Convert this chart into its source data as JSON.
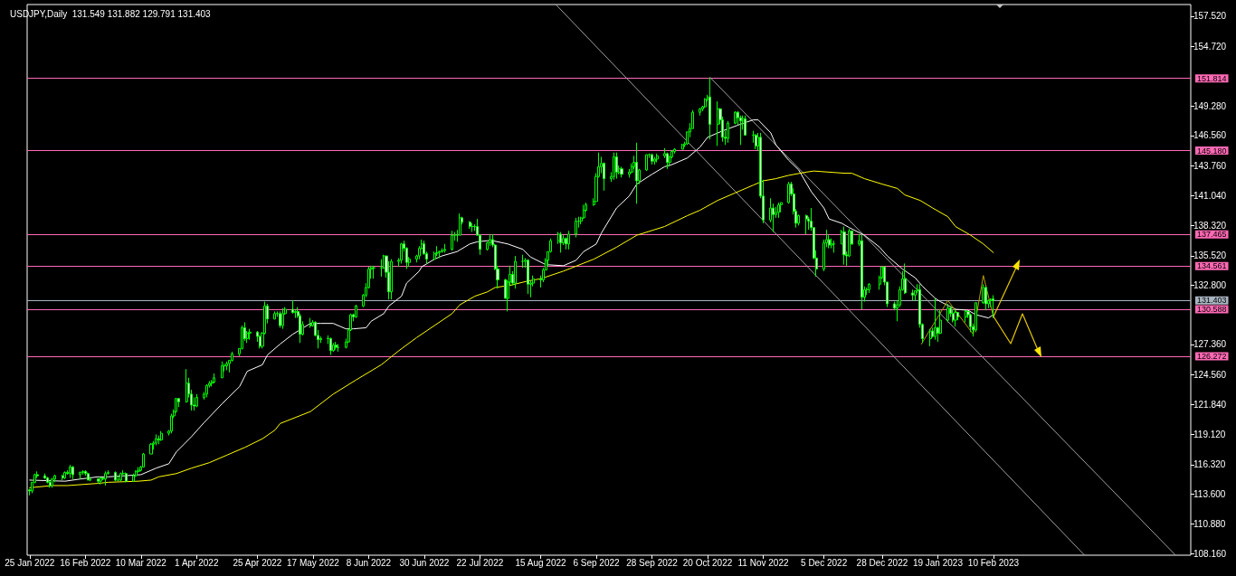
{
  "chart_data": {
    "type": "candlestick",
    "title": "USDJPY,Daily  131.549 131.882 129.791 131.403",
    "color": "#00ff00",
    "x": [
      "2022-01-25",
      "2022-01-26",
      "2022-01-27",
      "2022-01-28",
      "2022-01-31",
      "2022-02-01",
      "2022-02-02",
      "2022-02-03",
      "2022-02-04",
      "2022-02-07",
      "2022-02-08",
      "2022-02-09",
      "2022-02-10",
      "2022-02-11",
      "2022-02-14",
      "2022-02-15",
      "2022-02-16",
      "2022-02-17",
      "2022-02-18",
      "2022-02-21",
      "2022-02-22",
      "2022-02-23",
      "2022-02-24",
      "2022-02-25",
      "2022-02-28",
      "2022-03-01",
      "2022-03-02",
      "2022-03-03",
      "2022-03-04",
      "2022-03-07",
      "2022-03-08",
      "2022-03-09",
      "2022-03-10",
      "2022-03-11",
      "2022-03-14",
      "2022-03-15",
      "2022-03-16",
      "2022-03-17",
      "2022-03-18",
      "2022-03-21",
      "2022-03-22",
      "2022-03-23",
      "2022-03-24",
      "2022-03-25",
      "2022-03-28",
      "2022-03-29",
      "2022-03-30",
      "2022-03-31",
      "2022-04-01",
      "2022-04-04",
      "2022-04-05",
      "2022-04-06",
      "2022-04-07",
      "2022-04-08",
      "2022-04-11",
      "2022-04-12",
      "2022-04-13",
      "2022-04-14",
      "2022-04-15",
      "2022-04-18",
      "2022-04-19",
      "2022-04-20",
      "2022-04-21",
      "2022-04-22",
      "2022-04-25",
      "2022-04-26",
      "2022-04-27",
      "2022-04-28",
      "2022-04-29",
      "2022-05-02",
      "2022-05-03",
      "2022-05-04",
      "2022-05-05",
      "2022-05-06",
      "2022-05-09",
      "2022-05-10",
      "2022-05-11",
      "2022-05-12",
      "2022-05-13",
      "2022-05-16",
      "2022-05-17",
      "2022-05-18",
      "2022-05-19",
      "2022-05-20",
      "2022-05-23",
      "2022-05-24",
      "2022-05-25",
      "2022-05-26",
      "2022-05-27",
      "2022-05-30",
      "2022-05-31",
      "2022-06-01",
      "2022-06-02",
      "2022-06-03",
      "2022-06-06",
      "2022-06-07",
      "2022-06-08",
      "2022-06-09",
      "2022-06-10",
      "2022-06-13",
      "2022-06-14",
      "2022-06-15",
      "2022-06-16",
      "2022-06-17",
      "2022-06-20",
      "2022-06-21",
      "2022-06-22",
      "2022-06-23",
      "2022-06-24",
      "2022-06-27",
      "2022-06-28",
      "2022-06-29",
      "2022-06-30",
      "2022-07-01",
      "2022-07-04",
      "2022-07-05",
      "2022-07-06",
      "2022-07-07",
      "2022-07-08",
      "2022-07-11",
      "2022-07-12",
      "2022-07-13",
      "2022-07-14",
      "2022-07-15",
      "2022-07-18",
      "2022-07-19",
      "2022-07-20",
      "2022-07-21",
      "2022-07-22",
      "2022-07-25",
      "2022-07-26",
      "2022-07-27",
      "2022-07-28",
      "2022-07-29",
      "2022-08-01",
      "2022-08-02",
      "2022-08-03",
      "2022-08-04",
      "2022-08-05",
      "2022-08-08",
      "2022-08-09",
      "2022-08-10",
      "2022-08-11",
      "2022-08-12",
      "2022-08-15",
      "2022-08-16",
      "2022-08-17",
      "2022-08-18",
      "2022-08-19",
      "2022-08-22",
      "2022-08-23",
      "2022-08-24",
      "2022-08-25",
      "2022-08-26",
      "2022-08-29",
      "2022-08-30",
      "2022-08-31",
      "2022-09-01",
      "2022-09-02",
      "2022-09-05",
      "2022-09-06",
      "2022-09-07",
      "2022-09-08",
      "2022-09-09",
      "2022-09-12",
      "2022-09-13",
      "2022-09-14",
      "2022-09-15",
      "2022-09-16",
      "2022-09-19",
      "2022-09-20",
      "2022-09-21",
      "2022-09-22",
      "2022-09-23",
      "2022-09-26",
      "2022-09-27",
      "2022-09-28",
      "2022-09-29",
      "2022-09-30",
      "2022-10-03",
      "2022-10-04",
      "2022-10-05",
      "2022-10-06",
      "2022-10-07",
      "2022-10-10",
      "2022-10-11",
      "2022-10-12",
      "2022-10-13",
      "2022-10-14",
      "2022-10-17",
      "2022-10-18",
      "2022-10-19",
      "2022-10-20",
      "2022-10-21",
      "2022-10-24",
      "2022-10-25",
      "2022-10-26",
      "2022-10-27",
      "2022-10-28",
      "2022-10-31",
      "2022-11-01",
      "2022-11-02",
      "2022-11-03",
      "2022-11-04",
      "2022-11-07",
      "2022-11-08",
      "2022-11-09",
      "2022-11-10",
      "2022-11-11",
      "2022-11-14",
      "2022-11-15",
      "2022-11-16",
      "2022-11-17",
      "2022-11-18",
      "2022-11-21",
      "2022-11-22",
      "2022-11-23",
      "2022-11-24",
      "2022-11-25",
      "2022-11-28",
      "2022-11-29",
      "2022-11-30",
      "2022-12-01",
      "2022-12-02",
      "2022-12-05",
      "2022-12-06",
      "2022-12-07",
      "2022-12-08",
      "2022-12-09",
      "2022-12-12",
      "2022-12-13",
      "2022-12-14",
      "2022-12-15",
      "2022-12-16",
      "2022-12-19",
      "2022-12-20",
      "2022-12-21",
      "2022-12-22",
      "2022-12-23",
      "2022-12-27",
      "2022-12-28",
      "2022-12-29",
      "2022-12-30",
      "2023-01-02",
      "2023-01-03",
      "2023-01-04",
      "2023-01-05",
      "2023-01-06",
      "2023-01-09",
      "2023-01-10",
      "2023-01-11",
      "2023-01-12",
      "2023-01-13",
      "2023-01-16",
      "2023-01-17",
      "2023-01-18",
      "2023-01-19",
      "2023-01-20",
      "2023-01-23",
      "2023-01-24",
      "2023-01-25",
      "2023-01-26",
      "2023-01-27",
      "2023-01-30",
      "2023-01-31",
      "2023-02-01",
      "2023-02-02",
      "2023-02-03",
      "2023-02-06",
      "2023-02-07",
      "2023-02-08",
      "2023-02-09",
      "2023-02-10"
    ],
    "ohlc": [
      [
        114.0,
        114.1,
        113.5,
        113.9
      ],
      [
        113.9,
        114.7,
        113.7,
        114.7
      ],
      [
        114.7,
        115.5,
        114.6,
        115.4
      ],
      [
        115.4,
        115.7,
        115.1,
        115.3
      ],
      [
        115.3,
        115.5,
        115.0,
        115.1
      ],
      [
        115.1,
        115.2,
        114.6,
        114.7
      ],
      [
        114.7,
        114.8,
        114.2,
        114.4
      ],
      [
        114.4,
        115.1,
        114.2,
        115.0
      ],
      [
        115.0,
        115.4,
        114.7,
        115.3
      ],
      [
        115.3,
        115.4,
        114.9,
        115.1
      ],
      [
        115.1,
        115.7,
        115.0,
        115.6
      ],
      [
        115.6,
        115.8,
        115.4,
        115.5
      ],
      [
        115.5,
        116.3,
        115.1,
        116.1
      ],
      [
        116.1,
        116.2,
        115.0,
        115.4
      ],
      [
        115.4,
        115.7,
        115.0,
        115.6
      ],
      [
        115.6,
        115.8,
        115.4,
        115.7
      ],
      [
        115.7,
        115.8,
        115.3,
        115.5
      ],
      [
        115.5,
        115.6,
        114.9,
        114.9
      ],
      [
        114.9,
        115.2,
        114.8,
        115.0
      ],
      [
        115.0,
        115.1,
        114.6,
        114.8
      ],
      [
        114.8,
        115.2,
        114.5,
        115.1
      ],
      [
        115.1,
        115.1,
        114.9,
        115.0
      ],
      [
        115.0,
        115.7,
        114.4,
        115.5
      ],
      [
        115.5,
        115.8,
        115.4,
        115.6
      ],
      [
        115.6,
        115.7,
        114.8,
        114.9
      ],
      [
        114.9,
        115.2,
        114.8,
        114.9
      ],
      [
        114.9,
        115.6,
        114.8,
        115.5
      ],
      [
        115.5,
        115.8,
        115.4,
        115.5
      ],
      [
        115.5,
        115.6,
        114.7,
        114.8
      ],
      [
        114.8,
        115.5,
        114.8,
        115.3
      ],
      [
        115.3,
        115.8,
        115.2,
        115.7
      ],
      [
        115.7,
        116.1,
        115.6,
        115.8
      ],
      [
        115.8,
        116.2,
        115.7,
        116.1
      ],
      [
        116.1,
        117.4,
        116.1,
        117.3
      ],
      [
        117.3,
        118.3,
        117.3,
        118.2
      ],
      [
        118.2,
        118.5,
        117.7,
        118.3
      ],
      [
        118.3,
        119.1,
        118.1,
        118.7
      ],
      [
        118.7,
        119.0,
        118.2,
        118.6
      ],
      [
        118.6,
        119.4,
        118.5,
        119.2
      ],
      [
        119.2,
        119.5,
        119.0,
        119.4
      ],
      [
        119.4,
        121.0,
        119.2,
        120.8
      ],
      [
        120.8,
        121.4,
        120.6,
        121.2
      ],
      [
        121.2,
        122.4,
        121.1,
        122.4
      ],
      [
        122.4,
        122.4,
        121.6,
        122.1
      ],
      [
        122.1,
        125.1,
        122.0,
        123.8
      ],
      [
        123.8,
        124.3,
        122.5,
        122.8
      ],
      [
        122.8,
        123.2,
        121.3,
        121.8
      ],
      [
        121.8,
        122.5,
        121.3,
        121.7
      ],
      [
        121.7,
        122.8,
        121.6,
        122.5
      ],
      [
        122.5,
        123.0,
        122.3,
        122.8
      ],
      [
        122.8,
        123.7,
        122.5,
        123.6
      ],
      [
        123.6,
        124.0,
        123.4,
        123.8
      ],
      [
        123.8,
        124.1,
        123.5,
        123.9
      ],
      [
        123.9,
        124.7,
        123.8,
        124.3
      ],
      [
        124.3,
        125.8,
        124.3,
        125.4
      ],
      [
        125.4,
        125.6,
        124.9,
        125.4
      ],
      [
        125.4,
        125.8,
        125.0,
        125.6
      ],
      [
        125.6,
        125.9,
        124.8,
        125.9
      ],
      [
        125.9,
        126.7,
        125.8,
        126.5
      ],
      [
        126.5,
        127.0,
        126.3,
        127.0
      ],
      [
        127.0,
        129.1,
        126.9,
        128.9
      ],
      [
        128.9,
        129.4,
        127.7,
        127.9
      ],
      [
        127.9,
        128.6,
        127.5,
        128.4
      ],
      [
        128.4,
        128.8,
        127.8,
        128.5
      ],
      [
        128.5,
        128.6,
        127.6,
        128.1
      ],
      [
        128.1,
        128.2,
        127.0,
        127.2
      ],
      [
        127.2,
        128.5,
        127.0,
        128.4
      ],
      [
        128.4,
        131.3,
        128.3,
        130.9
      ],
      [
        130.9,
        131.1,
        129.3,
        129.7
      ],
      [
        129.7,
        130.4,
        129.7,
        130.2
      ],
      [
        130.2,
        130.4,
        129.9,
        130.2
      ],
      [
        130.2,
        130.4,
        128.9,
        129.1
      ],
      [
        129.1,
        130.7,
        128.8,
        130.2
      ],
      [
        130.2,
        130.8,
        130.1,
        130.6
      ],
      [
        130.6,
        131.4,
        130.2,
        130.3
      ],
      [
        130.3,
        130.5,
        129.8,
        130.4
      ],
      [
        130.4,
        130.8,
        129.8,
        130.0
      ],
      [
        130.0,
        130.2,
        127.5,
        128.3
      ],
      [
        128.3,
        129.5,
        128.2,
        129.2
      ],
      [
        129.2,
        129.8,
        128.9,
        129.1
      ],
      [
        129.1,
        129.6,
        129.0,
        129.4
      ],
      [
        129.4,
        129.5,
        128.1,
        128.2
      ],
      [
        128.2,
        128.7,
        127.0,
        127.8
      ],
      [
        127.8,
        128.1,
        127.5,
        127.9
      ],
      [
        127.9,
        128.2,
        127.4,
        127.9
      ],
      [
        127.9,
        128.0,
        126.4,
        126.8
      ],
      [
        126.8,
        127.5,
        126.7,
        127.3
      ],
      [
        127.3,
        127.6,
        126.9,
        127.1
      ],
      [
        127.1,
        127.4,
        126.7,
        127.1
      ],
      [
        127.1,
        127.9,
        127.0,
        127.6
      ],
      [
        127.6,
        128.8,
        127.5,
        128.7
      ],
      [
        128.7,
        130.2,
        128.6,
        130.1
      ],
      [
        130.1,
        130.2,
        129.5,
        129.9
      ],
      [
        129.9,
        131.0,
        129.8,
        130.9
      ],
      [
        130.9,
        132.0,
        130.8,
        131.9
      ],
      [
        131.9,
        133.0,
        131.7,
        132.6
      ],
      [
        132.6,
        134.5,
        132.5,
        134.3
      ],
      [
        134.3,
        134.6,
        133.4,
        134.4
      ],
      [
        134.4,
        134.6,
        133.4,
        134.4
      ],
      [
        134.4,
        135.2,
        133.6,
        134.4
      ],
      [
        134.4,
        135.6,
        134.3,
        135.5
      ],
      [
        135.5,
        135.5,
        133.5,
        134.0
      ],
      [
        134.0,
        135.0,
        131.5,
        132.2
      ],
      [
        132.2,
        135.2,
        131.5,
        135.0
      ],
      [
        135.0,
        135.3,
        134.5,
        135.1
      ],
      [
        135.1,
        136.7,
        134.8,
        136.6
      ],
      [
        136.6,
        136.9,
        135.9,
        136.2
      ],
      [
        136.2,
        136.3,
        134.3,
        134.9
      ],
      [
        134.9,
        135.4,
        134.5,
        135.2
      ],
      [
        135.2,
        135.6,
        134.9,
        135.5
      ],
      [
        135.5,
        136.4,
        135.2,
        136.2
      ],
      [
        136.2,
        137.0,
        136.1,
        136.6
      ],
      [
        136.6,
        136.9,
        135.6,
        135.7
      ],
      [
        135.7,
        135.9,
        134.8,
        135.2
      ],
      [
        135.2,
        135.9,
        135.1,
        135.7
      ],
      [
        135.7,
        136.4,
        135.5,
        135.8
      ],
      [
        135.8,
        136.0,
        135.3,
        135.9
      ],
      [
        135.9,
        136.2,
        135.8,
        136.0
      ],
      [
        136.0,
        136.6,
        135.8,
        136.1
      ],
      [
        136.1,
        137.8,
        136.0,
        137.4
      ],
      [
        137.4,
        137.7,
        136.9,
        137.4
      ],
      [
        137.4,
        137.9,
        136.8,
        137.4
      ],
      [
        137.4,
        139.4,
        137.4,
        139.0
      ],
      [
        139.0,
        139.1,
        138.4,
        138.6
      ],
      [
        138.6,
        138.7,
        138.0,
        138.2
      ],
      [
        138.2,
        138.5,
        137.7,
        138.2
      ],
      [
        138.2,
        138.4,
        137.8,
        138.2
      ],
      [
        138.2,
        138.9,
        137.4,
        137.4
      ],
      [
        137.4,
        137.5,
        135.6,
        136.1
      ],
      [
        136.1,
        136.8,
        136.0,
        136.7
      ],
      [
        136.7,
        137.5,
        136.4,
        137.0
      ],
      [
        137.0,
        137.5,
        136.3,
        136.5
      ],
      [
        136.5,
        136.6,
        134.2,
        134.3
      ],
      [
        134.3,
        134.6,
        132.5,
        133.3
      ],
      [
        133.3,
        133.4,
        131.6,
        131.6
      ],
      [
        131.6,
        133.3,
        130.4,
        133.1
      ],
      [
        133.1,
        134.6,
        132.8,
        133.8
      ],
      [
        133.8,
        134.1,
        132.8,
        133.0
      ],
      [
        133.0,
        135.5,
        132.5,
        135.0
      ],
      [
        135.0,
        135.6,
        134.4,
        135.0
      ],
      [
        135.0,
        135.3,
        134.4,
        135.1
      ],
      [
        135.1,
        135.2,
        132.0,
        132.9
      ],
      [
        132.9,
        133.2,
        131.7,
        133.0
      ],
      [
        133.0,
        133.7,
        132.7,
        133.4
      ],
      [
        133.4,
        133.7,
        132.6,
        133.3
      ],
      [
        133.3,
        134.4,
        133.1,
        134.2
      ],
      [
        134.2,
        135.3,
        134.2,
        135.1
      ],
      [
        135.1,
        135.9,
        134.6,
        135.9
      ],
      [
        135.9,
        137.1,
        135.8,
        136.9
      ],
      [
        136.9,
        137.7,
        136.6,
        137.5
      ],
      [
        137.5,
        137.7,
        135.8,
        136.7
      ],
      [
        136.7,
        137.4,
        136.5,
        137.1
      ],
      [
        137.1,
        137.2,
        136.1,
        136.6
      ],
      [
        136.6,
        137.8,
        136.1,
        137.5
      ],
      [
        137.5,
        139.0,
        137.2,
        138.7
      ],
      [
        138.7,
        139.1,
        138.1,
        138.7
      ],
      [
        138.7,
        139.1,
        138.4,
        139.0
      ],
      [
        139.0,
        140.2,
        138.9,
        139.7
      ],
      [
        139.7,
        140.4,
        139.6,
        140.2
      ],
      [
        140.2,
        140.8,
        140.1,
        140.5
      ],
      [
        140.5,
        143.1,
        140.5,
        142.8
      ],
      [
        142.8,
        145.0,
        142.7,
        143.7
      ],
      [
        143.7,
        144.6,
        143.1,
        144.0
      ],
      [
        144.0,
        144.1,
        141.5,
        142.6
      ],
      [
        142.6,
        143.2,
        142.3,
        142.8
      ],
      [
        142.8,
        145.0,
        142.5,
        144.6
      ],
      [
        144.6,
        145.0,
        142.6,
        143.2
      ],
      [
        143.2,
        143.8,
        143.0,
        143.5
      ],
      [
        143.5,
        143.7,
        142.7,
        143.0
      ],
      [
        143.0,
        143.5,
        142.7,
        143.2
      ],
      [
        143.2,
        144.0,
        143.1,
        143.7
      ],
      [
        143.7,
        144.7,
        143.5,
        144.1
      ],
      [
        144.1,
        145.9,
        140.3,
        142.4
      ],
      [
        142.4,
        143.5,
        142.1,
        143.4
      ],
      [
        143.4,
        144.8,
        143.3,
        144.8
      ],
      [
        144.8,
        144.9,
        144.5,
        144.8
      ],
      [
        144.8,
        144.9,
        143.9,
        144.2
      ],
      [
        144.2,
        144.6,
        143.9,
        144.4
      ],
      [
        144.4,
        144.9,
        144.1,
        144.7
      ],
      [
        144.7,
        145.4,
        144.5,
        144.9
      ],
      [
        144.9,
        145.0,
        143.5,
        144.1
      ],
      [
        144.1,
        144.7,
        143.7,
        144.6
      ],
      [
        144.6,
        145.2,
        144.5,
        145.1
      ],
      [
        145.1,
        145.4,
        144.9,
        145.3
      ],
      [
        145.3,
        145.8,
        145.3,
        145.7
      ],
      [
        145.7,
        146.0,
        145.5,
        145.8
      ],
      [
        145.8,
        146.9,
        145.7,
        146.9
      ],
      [
        146.9,
        147.7,
        146.4,
        147.2
      ],
      [
        147.2,
        148.9,
        147.2,
        148.7
      ],
      [
        148.7,
        149.1,
        148.4,
        149.0
      ],
      [
        149.0,
        149.3,
        148.8,
        149.2
      ],
      [
        149.2,
        150.0,
        149.1,
        149.9
      ],
      [
        149.9,
        150.3,
        149.7,
        150.1
      ],
      [
        150.1,
        151.9,
        146.2,
        147.6
      ],
      [
        147.6,
        149.7,
        145.6,
        149.0
      ],
      [
        149.0,
        149.1,
        147.6,
        148.0
      ],
      [
        148.0,
        148.3,
        146.0,
        146.4
      ],
      [
        146.4,
        147.0,
        145.7,
        146.3
      ],
      [
        146.3,
        147.9,
        145.9,
        147.7
      ],
      [
        147.7,
        148.8,
        147.6,
        148.7
      ],
      [
        148.7,
        148.8,
        147.5,
        148.2
      ],
      [
        148.2,
        148.4,
        145.7,
        147.9
      ],
      [
        147.9,
        148.4,
        147.1,
        148.1
      ],
      [
        148.1,
        148.4,
        146.6,
        146.6
      ],
      [
        146.6,
        147.0,
        145.9,
        146.6
      ],
      [
        146.6,
        146.7,
        145.3,
        145.6
      ],
      [
        145.6,
        146.8,
        145.2,
        146.4
      ],
      [
        146.4,
        146.8,
        140.8,
        141.0
      ],
      [
        141.0,
        142.5,
        138.5,
        138.8
      ],
      [
        138.8,
        140.8,
        138.6,
        139.9
      ],
      [
        139.9,
        140.3,
        137.7,
        139.3
      ],
      [
        139.3,
        140.0,
        139.0,
        139.5
      ],
      [
        139.5,
        140.4,
        139.0,
        140.2
      ],
      [
        140.2,
        140.4,
        139.5,
        140.4
      ],
      [
        140.4,
        142.3,
        140.3,
        142.1
      ],
      [
        142.1,
        142.3,
        141.0,
        141.2
      ],
      [
        141.2,
        141.7,
        139.3,
        139.6
      ],
      [
        139.6,
        139.8,
        138.1,
        138.5
      ],
      [
        138.5,
        139.3,
        138.3,
        139.2
      ],
      [
        139.2,
        139.3,
        137.5,
        138.9
      ],
      [
        138.9,
        139.1,
        137.9,
        138.7
      ],
      [
        138.7,
        139.9,
        137.8,
        138.1
      ],
      [
        138.1,
        138.1,
        135.2,
        135.3
      ],
      [
        135.3,
        136.0,
        133.6,
        134.3
      ],
      [
        134.3,
        137.0,
        134.1,
        136.7
      ],
      [
        136.7,
        137.9,
        136.3,
        137.0
      ],
      [
        137.0,
        137.4,
        136.2,
        136.5
      ],
      [
        136.5,
        137.1,
        136.2,
        136.6
      ],
      [
        136.6,
        136.9,
        135.8,
        136.6
      ],
      [
        136.6,
        137.9,
        136.6,
        137.7
      ],
      [
        137.7,
        138.2,
        134.7,
        135.6
      ],
      [
        135.6,
        135.9,
        134.6,
        135.5
      ],
      [
        135.5,
        138.0,
        135.4,
        137.8
      ],
      [
        137.8,
        137.8,
        136.5,
        136.6
      ],
      [
        136.6,
        137.5,
        136.4,
        136.9
      ],
      [
        136.9,
        137.5,
        130.6,
        131.7
      ],
      [
        131.7,
        132.7,
        131.3,
        132.4
      ],
      [
        132.4,
        132.6,
        131.9,
        132.4
      ],
      [
        132.4,
        133.0,
        132.1,
        132.9
      ],
      [
        132.9,
        133.7,
        132.4,
        133.5
      ],
      [
        133.5,
        134.5,
        133.4,
        134.5
      ],
      [
        134.5,
        134.5,
        132.8,
        133.1
      ],
      [
        133.1,
        133.1,
        130.8,
        131.1
      ],
      [
        131.1,
        131.3,
        130.5,
        130.7
      ],
      [
        130.7,
        131.4,
        129.5,
        131.0
      ],
      [
        131.0,
        132.7,
        130.8,
        132.4
      ],
      [
        132.4,
        134.1,
        132.3,
        133.4
      ],
      [
        133.4,
        134.8,
        132.0,
        132.1
      ],
      [
        132.1,
        132.4,
        131.4,
        131.9
      ],
      [
        131.9,
        132.3,
        131.4,
        132.3
      ],
      [
        132.3,
        132.9,
        132.1,
        132.4
      ],
      [
        132.4,
        132.9,
        128.9,
        129.2
      ],
      [
        129.2,
        129.3,
        127.5,
        127.9
      ],
      [
        127.9,
        128.8,
        127.2,
        128.6
      ],
      [
        128.6,
        128.9,
        128.0,
        128.1
      ],
      [
        128.1,
        131.6,
        127.8,
        128.9
      ],
      [
        128.9,
        129.0,
        127.6,
        128.4
      ],
      [
        128.4,
        130.6,
        128.3,
        129.6
      ],
      [
        129.6,
        131.1,
        129.4,
        130.7
      ],
      [
        130.7,
        130.9,
        129.9,
        130.2
      ],
      [
        130.2,
        130.6,
        129.4,
        129.6
      ],
      [
        129.6,
        130.6,
        129.0,
        130.3
      ],
      [
        130.3,
        130.3,
        129.6,
        129.9
      ],
      [
        129.9,
        130.5,
        129.4,
        130.4
      ],
      [
        130.4,
        130.5,
        129.8,
        130.1
      ],
      [
        130.1,
        130.2,
        128.5,
        129.0
      ],
      [
        129.0,
        129.3,
        128.1,
        128.7
      ],
      [
        128.7,
        131.2,
        128.5,
        131.2
      ],
      [
        131.2,
        132.9,
        131.1,
        132.6
      ],
      [
        132.6,
        132.7,
        130.5,
        131.1
      ],
      [
        131.1,
        131.5,
        130.7,
        131.4
      ],
      [
        131.4,
        131.6,
        130.8,
        131.5
      ],
      [
        131.549,
        131.882,
        129.791,
        131.403
      ]
    ],
    "series": [
      {
        "type": "line",
        "color": "#a0a0a0",
        "x": [
          "2022-08-21",
          "2023-03-18"
        ],
        "values": [
          158.6,
          108.0
        ]
      },
      {
        "type": "line",
        "color": "#a0a0a0",
        "x": [
          "2022-10-21",
          "2023-04-23"
        ],
        "values": [
          151.9,
          108.0
        ]
      },
      {
        "type": "line",
        "color": "#ffffff",
        "x": [
          "2022-01-25",
          "2022-02-08",
          "2022-02-14",
          "2022-02-21",
          "2022-02-25",
          "2022-03-10",
          "2022-03-16",
          "2022-03-21",
          "2022-03-24",
          "2022-03-30",
          "2022-04-04",
          "2022-04-11",
          "2022-04-18",
          "2022-04-21",
          "2022-04-27",
          "2022-04-29",
          "2022-05-04",
          "2022-05-09",
          "2022-05-16",
          "2022-05-20",
          "2022-05-25",
          "2022-05-30",
          "2022-06-02",
          "2022-06-07",
          "2022-06-09",
          "2022-06-14",
          "2022-06-16",
          "2022-06-21",
          "2022-06-23",
          "2022-06-28",
          "2022-06-29",
          "2022-07-04",
          "2022-07-07",
          "2022-07-13",
          "2022-07-18",
          "2022-07-21",
          "2022-07-25",
          "2022-07-27",
          "2022-08-02",
          "2022-08-08",
          "2022-08-11",
          "2022-08-17",
          "2022-08-24",
          "2022-08-29",
          "2022-09-01",
          "2022-09-06",
          "2022-09-08",
          "2022-09-14",
          "2022-09-19",
          "2022-09-22",
          "2022-09-28",
          "2022-10-03",
          "2022-10-06",
          "2022-10-12",
          "2022-10-17",
          "2022-10-20",
          "2022-10-26",
          "2022-11-02",
          "2022-11-07",
          "2022-11-09",
          "2022-11-14",
          "2022-11-16",
          "2022-11-21",
          "2022-11-25",
          "2022-11-30",
          "2022-12-05",
          "2022-12-07",
          "2022-12-12",
          "2022-12-15",
          "2022-12-21",
          "2022-12-27",
          "2022-12-30",
          "2023-01-05",
          "2023-01-10",
          "2023-01-13",
          "2023-01-18",
          "2023-01-20",
          "2023-01-26",
          "2023-01-31",
          "2023-02-03",
          "2023-02-08",
          "2023-02-10"
        ],
        "values": [
          114.9,
          114.8,
          115.0,
          115.2,
          115.2,
          115.4,
          116.0,
          116.4,
          117.5,
          118.9,
          120.2,
          121.9,
          123.5,
          124.9,
          125.5,
          126.4,
          127.4,
          128.3,
          129.3,
          129.3,
          129.3,
          128.8,
          128.8,
          128.9,
          129.5,
          130.2,
          130.9,
          131.8,
          133.0,
          134.1,
          134.5,
          135.2,
          135.5,
          135.9,
          136.6,
          136.8,
          136.9,
          136.9,
          136.6,
          136.1,
          135.4,
          134.7,
          134.6,
          135.1,
          135.9,
          136.6,
          137.6,
          139.9,
          141.0,
          142.1,
          143.0,
          143.7,
          143.9,
          144.5,
          145.5,
          146.4,
          147.0,
          147.6,
          148.0,
          148.0,
          146.8,
          145.7,
          144.3,
          143.4,
          141.4,
          139.9,
          138.9,
          138.5,
          138.1,
          137.4,
          136.3,
          135.5,
          134.3,
          133.5,
          132.7,
          131.6,
          131.3,
          130.6,
          130.5,
          130.1,
          129.8,
          130.1
        ]
      },
      {
        "type": "line",
        "color": "#ffff00",
        "x": [
          "2022-01-25",
          "2022-02-03",
          "2022-02-09",
          "2022-02-21",
          "2022-02-25",
          "2022-03-09",
          "2022-03-14",
          "2022-03-17",
          "2022-03-24",
          "2022-03-30",
          "2022-04-06",
          "2022-04-13",
          "2022-04-20",
          "2022-04-27",
          "2022-05-02",
          "2022-05-04",
          "2022-05-16",
          "2022-05-25",
          "2022-06-03",
          "2022-06-13",
          "2022-06-20",
          "2022-06-27",
          "2022-07-04",
          "2022-07-11",
          "2022-07-14",
          "2022-07-20",
          "2022-07-25",
          "2022-07-28",
          "2022-08-03",
          "2022-08-10",
          "2022-08-15",
          "2022-08-24",
          "2022-09-05",
          "2022-09-14",
          "2022-09-22",
          "2022-10-03",
          "2022-10-12",
          "2022-10-17",
          "2022-10-24",
          "2022-10-31",
          "2022-11-07",
          "2022-11-11",
          "2022-11-16",
          "2022-11-21",
          "2022-11-28",
          "2022-12-01",
          "2022-12-13",
          "2022-12-16",
          "2022-12-21",
          "2022-12-28",
          "2023-01-03",
          "2023-01-06",
          "2023-01-12",
          "2023-01-17",
          "2023-01-23",
          "2023-01-26",
          "2023-02-01",
          "2023-02-06",
          "2023-02-10"
        ],
        "values": [
          114.2,
          114.4,
          114.4,
          114.6,
          114.7,
          114.8,
          114.9,
          115.2,
          115.5,
          116.0,
          116.5,
          117.2,
          117.9,
          118.7,
          119.5,
          120.1,
          121.2,
          122.8,
          124.1,
          125.5,
          126.8,
          128.0,
          129.1,
          130.2,
          131.0,
          131.8,
          132.2,
          132.6,
          132.8,
          133.2,
          133.4,
          134.1,
          135.2,
          136.3,
          137.4,
          138.2,
          139.2,
          139.7,
          140.6,
          141.3,
          142.0,
          142.4,
          142.6,
          142.9,
          143.2,
          143.3,
          143.1,
          143.1,
          142.6,
          142.1,
          141.7,
          141.1,
          140.6,
          139.9,
          139.1,
          138.2,
          137.4,
          136.6,
          135.8
        ]
      },
      {
        "type": "line",
        "color": "#b8a000",
        "x": [
          "2023-01-12T12:00",
          "2023-01-23",
          "2023-02-02",
          "2023-02-06",
          "2023-02-10"
        ],
        "values": [
          127.4,
          131.4,
          128.3,
          133.7,
          129.9
        ]
      }
    ],
    "xlim": [
      "2022-01-24",
      "2023-04-29"
    ],
    "xticks": [
      {
        "value": "2022-01-25",
        "label": "25 Jan 2022"
      },
      {
        "value": "2022-02-16",
        "label": "16 Feb 2022"
      },
      {
        "value": "2022-03-10",
        "label": "10 Mar 2022"
      },
      {
        "value": "2022-04-01",
        "label": "1 Apr 2022"
      },
      {
        "value": "2022-04-25",
        "label": "25 Apr 2022"
      },
      {
        "value": "2022-05-17",
        "label": "17 May 2022"
      },
      {
        "value": "2022-06-08",
        "label": "8 Jun 2022"
      },
      {
        "value": "2022-06-30",
        "label": "30 Jun 2022"
      },
      {
        "value": "2022-07-22",
        "label": "22 Jul 2022"
      },
      {
        "value": "2022-08-15",
        "label": "15 Aug 2022"
      },
      {
        "value": "2022-09-06",
        "label": "6 Sep 2022"
      },
      {
        "value": "2022-09-28",
        "label": "28 Sep 2022"
      },
      {
        "value": "2022-10-20",
        "label": "20 Oct 2022"
      },
      {
        "value": "2022-11-11",
        "label": "11 Nov 2022"
      },
      {
        "value": "2022-12-05",
        "label": "5 Dec 2022"
      },
      {
        "value": "2022-12-28",
        "label": "28 Dec 2022"
      },
      {
        "value": "2023-01-19",
        "label": "19 Jan 2023"
      },
      {
        "value": "2023-02-10",
        "label": "10 Feb 2023"
      }
    ],
    "ylim": [
      108.0,
      158.6
    ],
    "yticks": [
      {
        "value": 157.52,
        "label": "157.520"
      },
      {
        "value": 154.72,
        "label": "154.720"
      },
      {
        "value": 149.28,
        "label": "149.280"
      },
      {
        "value": 146.56,
        "label": "146.560"
      },
      {
        "value": 143.76,
        "label": "143.760"
      },
      {
        "value": 141.04,
        "label": "141.040"
      },
      {
        "value": 138.32,
        "label": "138.320"
      },
      {
        "value": 135.52,
        "label": "135.520"
      },
      {
        "value": 132.8,
        "label": "132.800"
      },
      {
        "value": 127.36,
        "label": "127.360"
      },
      {
        "value": 124.56,
        "label": "124.560"
      },
      {
        "value": 121.84,
        "label": "121.840"
      },
      {
        "value": 119.12,
        "label": "119.120"
      },
      {
        "value": 116.32,
        "label": "116.320"
      },
      {
        "value": 113.6,
        "label": "113.600"
      },
      {
        "value": 110.88,
        "label": "110.880"
      },
      {
        "value": 108.16,
        "label": "108.160"
      }
    ],
    "ref_lines": [
      {
        "axis": "y",
        "value": 151.814,
        "label": "151.814",
        "color": "#ff69b4"
      },
      {
        "axis": "y",
        "value": 145.18,
        "label": "145.180",
        "color": "#ff69b4"
      },
      {
        "axis": "y",
        "value": 137.465,
        "label": "137.465",
        "color": "#ff69b4"
      },
      {
        "axis": "y",
        "value": 134.561,
        "label": "134.561",
        "color": "#ff69b4"
      },
      {
        "axis": "y",
        "value": 131.403,
        "label": "131.403",
        "color": "#a8b4c0"
      },
      {
        "axis": "y",
        "value": 130.588,
        "label": "130.588",
        "color": "#ff69b4"
      },
      {
        "axis": "y",
        "value": 126.272,
        "label": "126.272",
        "color": "#ff69b4"
      }
    ]
  }
}
